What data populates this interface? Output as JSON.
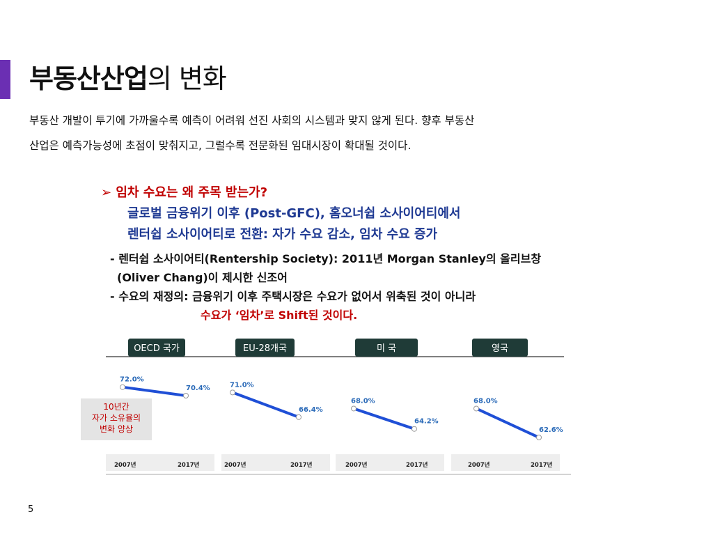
{
  "header": {
    "title_bold": "부동산산업",
    "title_light": "의 변화"
  },
  "intro": {
    "line1": "부동산 개발이 투기에 가까울수록 예측이 어려워 선진 사회의 시스템과 맞지 않게 된다. 향후 부동산",
    "line2": "산업은 예측가능성에 초점이 맞춰지고, 그럴수록 전문화된 임대시장이 확대될 것이다."
  },
  "question": {
    "heading": "➢ 임차 수요는 왜 주목 받는가?",
    "line1": "글로벌 금융위기 이후 (Post-GFC), 홈오너쉽 소사이어티에서",
    "line2": "렌터쉽 소사이어티로 전환: 자가 수요 감소, 임차 수요 증가"
  },
  "notes": {
    "note1_line1": "- 렌터쉽 소사이어티(Rentership Society): 2011년 Morgan Stanley의 올리브창",
    "note1_line2": "(Oliver Chang)이 제시한 신조어",
    "note2_line1": "- 수요의 재정의: 금융위기 이후 주택시장은 수요가 없어서 위축된 것이 아니라",
    "note2_line2": "수요가 ‘임차’로 Shift된 것이다."
  },
  "side_label": [
    "10년간",
    "자가 소유율의",
    "변화 양상"
  ],
  "colors": {
    "accent": "#6b2fb3",
    "line": "#1f4fd6",
    "panel_header": "#1f3b37",
    "red": "#c00000",
    "blue": "#1f3a93"
  },
  "chart_data": [
    {
      "type": "line",
      "title": "OECD 국가",
      "categories": [
        "2007년",
        "2017년"
      ],
      "values": [
        72.0,
        70.4
      ],
      "labels": [
        "72.0%",
        "70.4%"
      ]
    },
    {
      "type": "line",
      "title": "EU-28개국",
      "categories": [
        "2007년",
        "2017년"
      ],
      "values": [
        71.0,
        66.4
      ],
      "labels": [
        "71.0%",
        "66.4%"
      ]
    },
    {
      "type": "line",
      "title": "미 국",
      "categories": [
        "2007년",
        "2017년"
      ],
      "values": [
        68.0,
        64.2
      ],
      "labels": [
        "68.0%",
        "64.2%"
      ]
    },
    {
      "type": "line",
      "title": "영국",
      "categories": [
        "2007년",
        "2017년"
      ],
      "values": [
        68.0,
        62.6
      ],
      "labels": [
        "68.0%",
        "62.6%"
      ]
    }
  ],
  "page_number": "5"
}
